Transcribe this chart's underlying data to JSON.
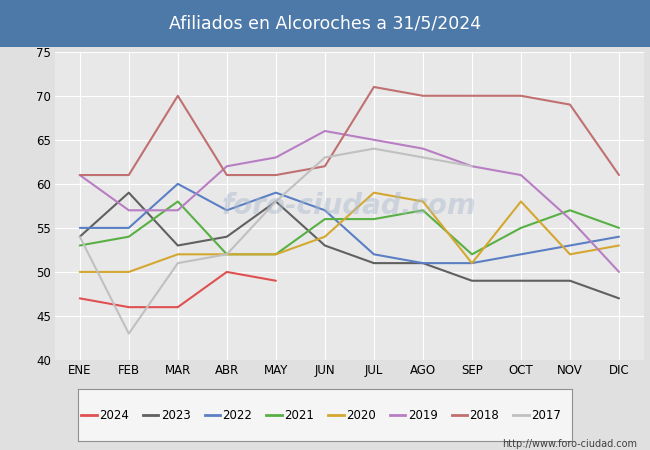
{
  "title": "Afiliados en Alcoroches a 31/5/2024",
  "title_color": "#ffffff",
  "title_bg_color": "#4d79a8",
  "ylim": [
    40,
    75
  ],
  "yticks": [
    40,
    45,
    50,
    55,
    60,
    65,
    70,
    75
  ],
  "months": [
    "ENE",
    "FEB",
    "MAR",
    "ABR",
    "MAY",
    "JUN",
    "JUL",
    "AGO",
    "SEP",
    "OCT",
    "NOV",
    "DIC"
  ],
  "url": "http://www.foro-ciudad.com",
  "series": [
    {
      "label": "2024",
      "color": "#e05050",
      "data": [
        47,
        46,
        46,
        50,
        49,
        null,
        null,
        null,
        null,
        null,
        null,
        null
      ]
    },
    {
      "label": "2023",
      "color": "#606060",
      "data": [
        54,
        59,
        53,
        54,
        58,
        53,
        51,
        51,
        49,
        49,
        49,
        47
      ]
    },
    {
      "label": "2022",
      "color": "#5b7fc4",
      "data": [
        55,
        55,
        60,
        57,
        59,
        57,
        52,
        51,
        51,
        52,
        53,
        54
      ]
    },
    {
      "label": "2021",
      "color": "#58b044",
      "data": [
        53,
        54,
        58,
        52,
        52,
        56,
        56,
        57,
        52,
        55,
        57,
        55
      ]
    },
    {
      "label": "2020",
      "color": "#d4a830",
      "data": [
        50,
        50,
        52,
        52,
        52,
        54,
        59,
        58,
        51,
        58,
        52,
        53
      ]
    },
    {
      "label": "2019",
      "color": "#b87ec4",
      "data": [
        61,
        57,
        57,
        62,
        63,
        66,
        65,
        64,
        62,
        61,
        56,
        50
      ]
    },
    {
      "label": "2018",
      "color": "#c07070",
      "data": [
        61,
        61,
        70,
        61,
        61,
        62,
        71,
        70,
        70,
        70,
        69,
        61
      ]
    },
    {
      "label": "2017",
      "color": "#c0c0c0",
      "data": [
        54,
        43,
        51,
        52,
        58,
        63,
        64,
        63,
        62,
        null,
        null,
        null
      ]
    }
  ],
  "bg_color": "#e0e0e0",
  "plot_bg_color": "#e8e8e8",
  "grid_color": "#ffffff"
}
